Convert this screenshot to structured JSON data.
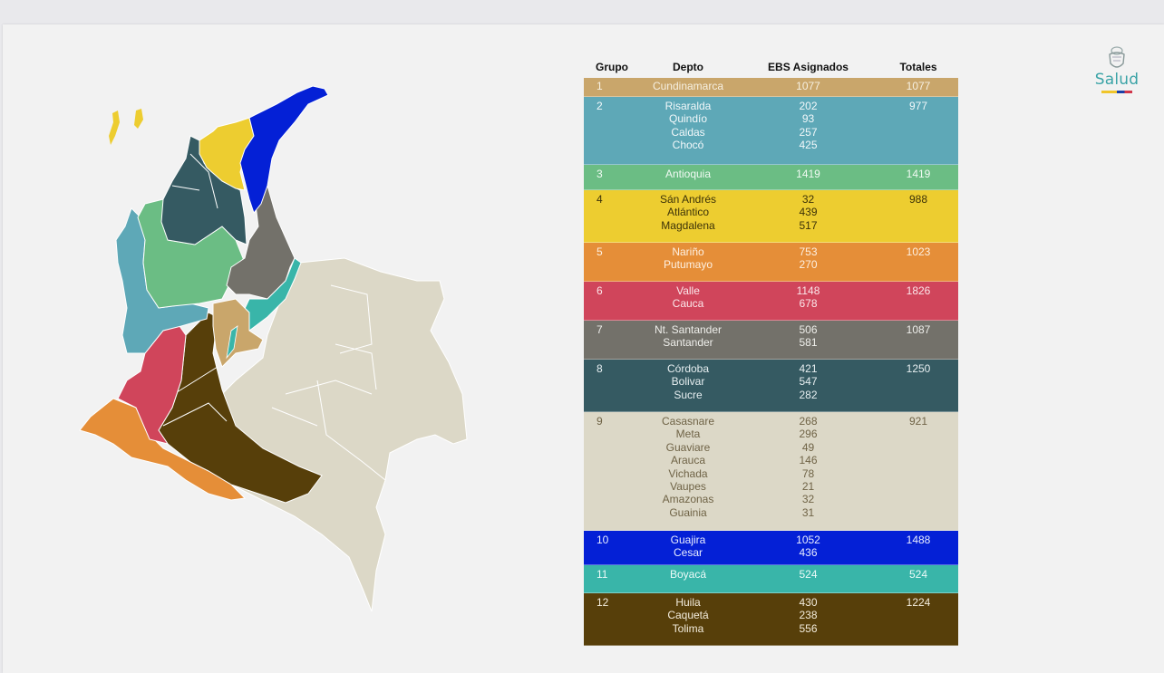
{
  "logo": {
    "text": "Salud",
    "emblem_icon": "coat-of-arms-icon"
  },
  "table": {
    "headers": {
      "grupo": "Grupo",
      "depto": "Depto",
      "ebs": "EBS Asignados",
      "totales": "Totales"
    },
    "rows": [
      {
        "grupo": "1",
        "deptos": [
          "Cundinamarca"
        ],
        "ebs": [
          "1077"
        ],
        "total": "1077",
        "bg": "#c9a66b",
        "fg": "#f6f0e2"
      },
      {
        "grupo": "2",
        "deptos": [
          "Risaralda",
          "Quindío",
          "Caldas",
          "Chocó"
        ],
        "ebs": [
          "202",
          "93",
          "257",
          "425"
        ],
        "total": "977",
        "bg": "#5ea8b7",
        "fg": "#f2f8fa"
      },
      {
        "grupo": "3",
        "deptos": [
          "Antioquia"
        ],
        "ebs": [
          "1419"
        ],
        "total": "1419",
        "bg": "#6bbd84",
        "fg": "#f1faf3"
      },
      {
        "grupo": "4",
        "deptos": [
          "Sán Andrés",
          "Atlántico",
          "Magdalena"
        ],
        "ebs": [
          "32",
          "439",
          "517"
        ],
        "total": "988",
        "bg": "#edcd30",
        "fg": "#3c3208"
      },
      {
        "grupo": "5",
        "deptos": [
          "Nariño",
          "Putumayo"
        ],
        "ebs": [
          "753",
          "270"
        ],
        "total": "1023",
        "bg": "#e58e38",
        "fg": "#fdf0e2"
      },
      {
        "grupo": "6",
        "deptos": [
          "Valle",
          "Cauca"
        ],
        "ebs": [
          "1148",
          "678"
        ],
        "total": "1826",
        "bg": "#d0455b",
        "fg": "#fbe7ea"
      },
      {
        "grupo": "7",
        "deptos": [
          "Nt. Santander",
          "Santander"
        ],
        "ebs": [
          "506",
          "581"
        ],
        "total": "1087",
        "bg": "#73716a",
        "fg": "#eeeeea"
      },
      {
        "grupo": "8",
        "deptos": [
          "Córdoba",
          "Bolivar",
          "Sucre"
        ],
        "ebs": [
          "421",
          "547",
          "282"
        ],
        "total": "1250",
        "bg": "#355a62",
        "fg": "#e6eef0"
      },
      {
        "grupo": "9",
        "deptos": [
          "Casasnare",
          "Meta",
          "Guaviare",
          "Arauca",
          "Vichada",
          "Vaupes",
          "Amazonas",
          "Guainia"
        ],
        "ebs": [
          "268",
          "296",
          "49",
          "146",
          "78",
          "21",
          "32",
          "31"
        ],
        "total": "921",
        "bg": "#dcd8c7",
        "fg": "#6f6346"
      },
      {
        "grupo": "10",
        "deptos": [
          "Guajira",
          "Cesar"
        ],
        "ebs": [
          "1052",
          "436"
        ],
        "total": "1488",
        "bg": "#0420d6",
        "fg": "#e8ecff"
      },
      {
        "grupo": "11",
        "deptos": [
          "Boyacá"
        ],
        "ebs": [
          "524"
        ],
        "total": "524",
        "bg": "#39b5a9",
        "fg": "#ecfaf8"
      },
      {
        "grupo": "12",
        "deptos": [
          "Huila",
          "Caquetá",
          "Tolima"
        ],
        "ebs": [
          "430",
          "238",
          "556"
        ],
        "total": "1224",
        "bg": "#573f0a",
        "fg": "#f3ecdc"
      }
    ]
  },
  "map": {
    "colors": {
      "group1": "#c9a66b",
      "group2": "#5ea8b7",
      "group3": "#6bbd84",
      "group4": "#edcd30",
      "group5": "#e58e38",
      "group6": "#d0455b",
      "group7": "#73716a",
      "group8": "#355a62",
      "group9": "#dcd8c7",
      "group10": "#0420d6",
      "group11": "#39b5a9",
      "group12": "#573f0a"
    }
  }
}
